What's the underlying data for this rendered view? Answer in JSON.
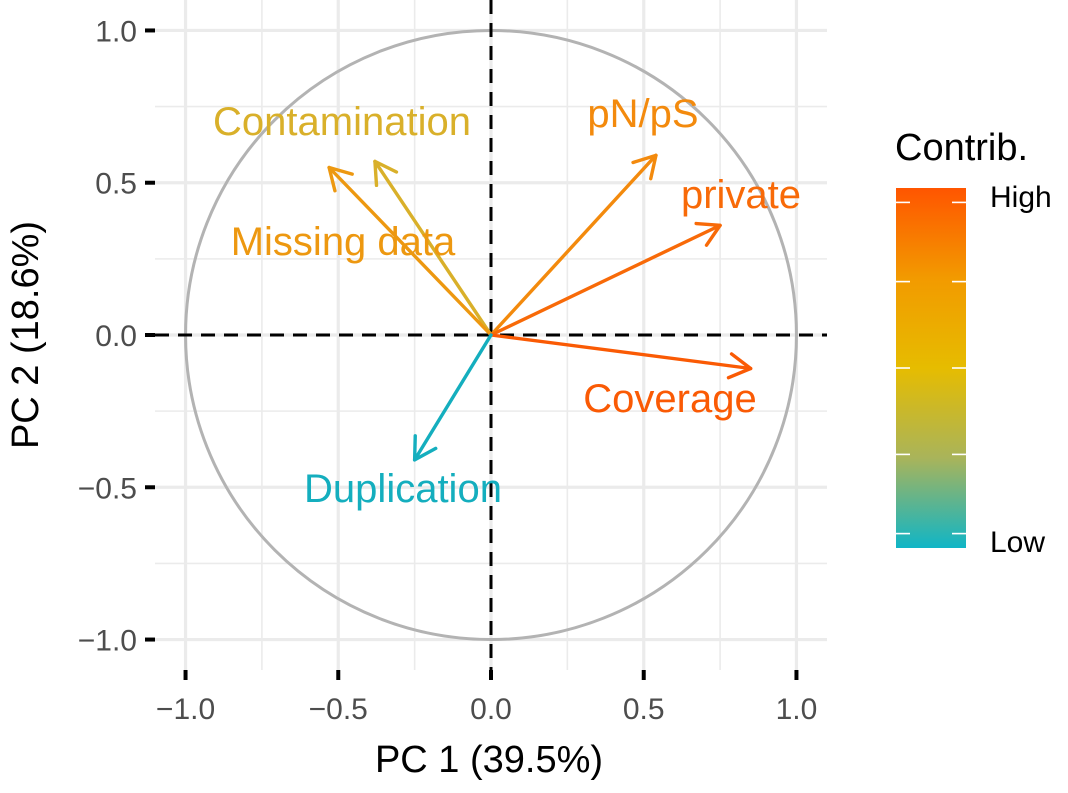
{
  "chart_data": {
    "type": "pca-variable-correlation-circle",
    "xlabel": "PC 1 (39.5%)",
    "ylabel": "PC 2 (18.6%)",
    "xlim": [
      -1.1,
      1.1
    ],
    "ylim": [
      -1.1,
      1.1
    ],
    "x_ticks": [
      -1.0,
      -0.5,
      0.0,
      0.5,
      1.0
    ],
    "y_ticks": [
      -1.0,
      -0.5,
      0.0,
      0.5,
      1.0
    ],
    "x_tick_labels": [
      "−1.0",
      "−0.5",
      "0.0",
      "0.5",
      "1.0"
    ],
    "y_tick_labels": [
      "−1.0",
      "−0.5",
      "0.0",
      "0.5",
      "1.0"
    ],
    "grid": true,
    "unit_circle": true,
    "variables": [
      {
        "name": "Contamination",
        "x": -0.38,
        "y": 0.57,
        "color": "#D9B02A"
      },
      {
        "name": "Missing data",
        "x": -0.53,
        "y": 0.55,
        "color": "#ED9810"
      },
      {
        "name": "pN/pS",
        "x": 0.54,
        "y": 0.59,
        "color": "#F38A0D"
      },
      {
        "name": "private",
        "x": 0.75,
        "y": 0.36,
        "color": "#F86A08"
      },
      {
        "name": "Coverage",
        "x": 0.85,
        "y": -0.11,
        "color": "#FA5A04"
      },
      {
        "name": "Duplication",
        "x": -0.25,
        "y": -0.41,
        "color": "#14AEBE"
      }
    ],
    "legend": {
      "title": "Contrib.",
      "position": "right",
      "high_label": "High",
      "low_label": "Low",
      "colors": [
        "#FF5500",
        "#F29A00",
        "#E6BC00",
        "#A9B45A",
        "#10B5C6"
      ]
    }
  }
}
